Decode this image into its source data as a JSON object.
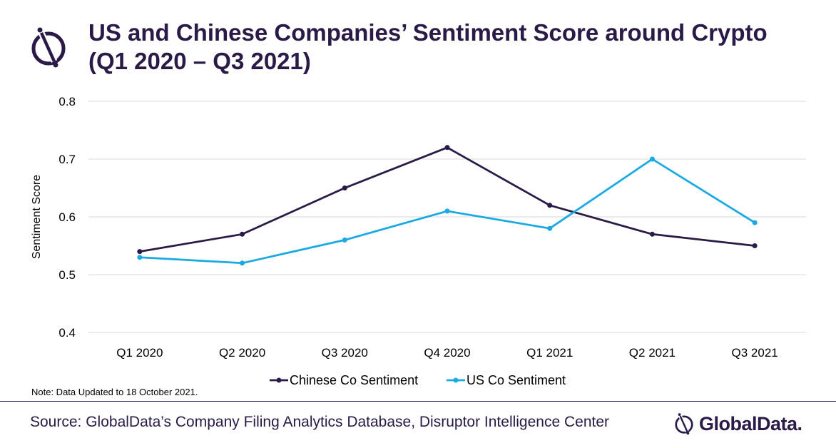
{
  "header": {
    "title_line1": "US and Chinese Companies’ Sentiment Score around Crypto",
    "title_line2": "(Q1 2020 – Q3 2021)"
  },
  "footer": {
    "note": "Note: Data Updated to 18 October 2021.",
    "source": "Source: GlobalData’s Company Filing Analytics Database, Disruptor Intelligence Center",
    "brand": "GlobalData."
  },
  "icons": {
    "title_logo": "globaldata-logo-icon",
    "brand_logo": "globaldata-logo-icon"
  },
  "colors": {
    "brand": "#2a1a47",
    "chinese": "#2a1a47",
    "us": "#1aa9e2",
    "grid": "#d9d9d9"
  },
  "chart_data": {
    "type": "line",
    "categories": [
      "Q1 2020",
      "Q2 2020",
      "Q3 2020",
      "Q4 2020",
      "Q1 2021",
      "Q2 2021",
      "Q3 2021"
    ],
    "series": [
      {
        "name": "Chinese Co Sentiment",
        "values": [
          0.54,
          0.57,
          0.65,
          0.72,
          0.62,
          0.57,
          0.55
        ]
      },
      {
        "name": "US Co Sentiment",
        "values": [
          0.53,
          0.52,
          0.56,
          0.61,
          0.58,
          0.7,
          0.59
        ]
      }
    ],
    "xlabel": "",
    "ylabel": "Sentiment Score",
    "ylim": [
      0.4,
      0.8
    ],
    "yticks": [
      0.4,
      0.5,
      0.6,
      0.7,
      0.8
    ],
    "ytick_labels": [
      "0.4",
      "0.5",
      "0.6",
      "0.7",
      "0.8"
    ],
    "grid": true,
    "legend": "bottom-center"
  }
}
